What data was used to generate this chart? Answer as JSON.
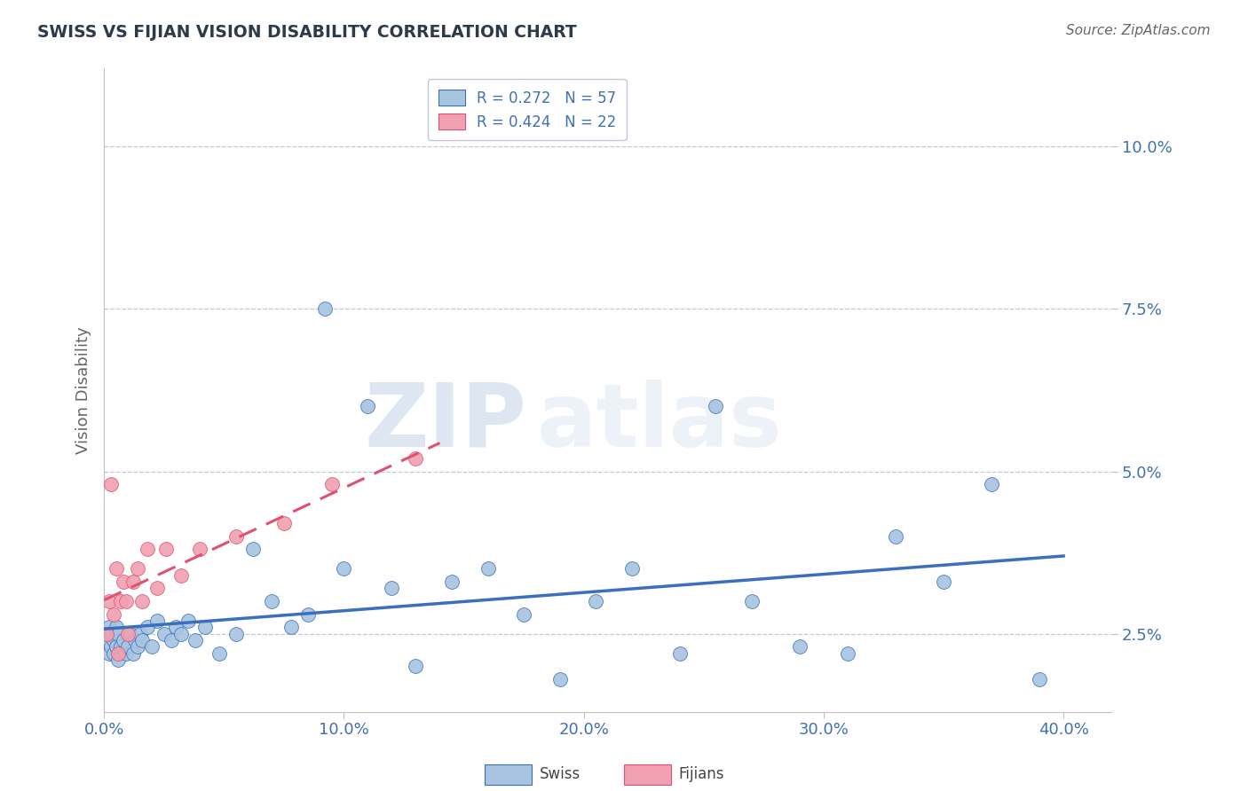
{
  "title": "SWISS VS FIJIAN VISION DISABILITY CORRELATION CHART",
  "source": "Source: ZipAtlas.com",
  "ylabel": "Vision Disability",
  "x_tick_labels": [
    "0.0%",
    "10.0%",
    "20.0%",
    "30.0%",
    "40.0%"
  ],
  "x_tick_values": [
    0.0,
    0.1,
    0.2,
    0.3,
    0.4
  ],
  "y_tick_labels": [
    "2.5%",
    "5.0%",
    "7.5%",
    "10.0%"
  ],
  "y_tick_values": [
    0.025,
    0.05,
    0.075,
    0.1
  ],
  "xlim": [
    0.0,
    0.42
  ],
  "ylim": [
    0.013,
    0.112
  ],
  "swiss_R": 0.272,
  "swiss_N": 57,
  "fijian_R": 0.424,
  "fijian_N": 22,
  "swiss_color": "#a8c4e0",
  "fijian_color": "#f0a0b0",
  "swiss_line_color": "#3a6fbf",
  "fijian_line_color": "#e05070",
  "swiss_x": [
    0.001,
    0.002,
    0.002,
    0.003,
    0.003,
    0.004,
    0.004,
    0.005,
    0.005,
    0.006,
    0.006,
    0.007,
    0.008,
    0.009,
    0.01,
    0.011,
    0.012,
    0.013,
    0.014,
    0.015,
    0.016,
    0.018,
    0.02,
    0.022,
    0.025,
    0.028,
    0.03,
    0.032,
    0.035,
    0.038,
    0.042,
    0.048,
    0.055,
    0.062,
    0.07,
    0.078,
    0.085,
    0.092,
    0.1,
    0.11,
    0.12,
    0.13,
    0.145,
    0.16,
    0.175,
    0.19,
    0.205,
    0.22,
    0.24,
    0.255,
    0.27,
    0.29,
    0.31,
    0.33,
    0.35,
    0.37,
    0.39
  ],
  "swiss_y": [
    0.025,
    0.022,
    0.026,
    0.023,
    0.025,
    0.024,
    0.022,
    0.023,
    0.026,
    0.021,
    0.025,
    0.023,
    0.024,
    0.022,
    0.023,
    0.025,
    0.022,
    0.024,
    0.023,
    0.025,
    0.024,
    0.026,
    0.023,
    0.027,
    0.025,
    0.024,
    0.026,
    0.025,
    0.027,
    0.024,
    0.026,
    0.022,
    0.025,
    0.038,
    0.03,
    0.026,
    0.028,
    0.075,
    0.035,
    0.06,
    0.032,
    0.02,
    0.033,
    0.035,
    0.028,
    0.018,
    0.03,
    0.035,
    0.022,
    0.06,
    0.03,
    0.023,
    0.022,
    0.04,
    0.033,
    0.048,
    0.018
  ],
  "fijian_x": [
    0.001,
    0.002,
    0.003,
    0.004,
    0.005,
    0.006,
    0.007,
    0.008,
    0.009,
    0.01,
    0.012,
    0.014,
    0.016,
    0.018,
    0.022,
    0.026,
    0.032,
    0.04,
    0.055,
    0.075,
    0.095,
    0.13
  ],
  "fijian_y": [
    0.025,
    0.03,
    0.048,
    0.028,
    0.035,
    0.022,
    0.03,
    0.033,
    0.03,
    0.025,
    0.033,
    0.035,
    0.03,
    0.038,
    0.032,
    0.038,
    0.034,
    0.038,
    0.04,
    0.042,
    0.048,
    0.052
  ],
  "legend_label_swiss": "Swiss",
  "legend_label_fijian": "Fijians",
  "watermark_zip": "ZIP",
  "watermark_atlas": "atlas",
  "background_color": "#ffffff",
  "grid_color": "#c0c8d8",
  "title_color": "#2d3a4a",
  "axis_label_color": "#4070b0",
  "tick_label_color": "#4070b0"
}
